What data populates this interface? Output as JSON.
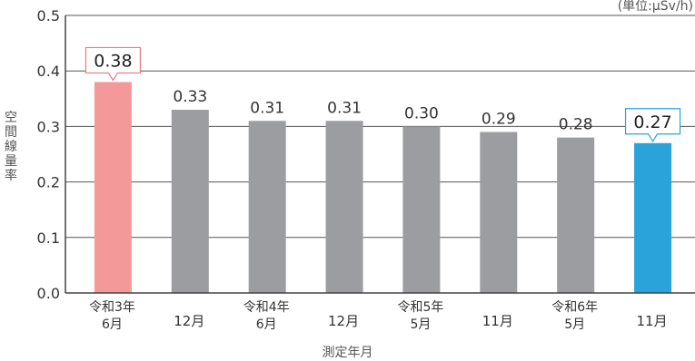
{
  "chart_data": {
    "type": "bar",
    "unit_label": "(単位:μSv/h)",
    "ylabel": "空間線量率",
    "xlabel": "測定年月",
    "ylim": [
      0,
      0.5
    ],
    "yticks": [
      "0.0",
      "0.1",
      "0.2",
      "0.3",
      "0.4",
      "0.5"
    ],
    "grid": true,
    "categories": [
      [
        "令和3年",
        "6月"
      ],
      [
        "",
        "12月"
      ],
      [
        "令和4年",
        "6月"
      ],
      [
        "",
        "12月"
      ],
      [
        "令和5年",
        "5月"
      ],
      [
        "",
        "11月"
      ],
      [
        "令和6年",
        "5月"
      ],
      [
        "",
        "11月"
      ]
    ],
    "values": [
      0.38,
      0.33,
      0.31,
      0.31,
      0.3,
      0.29,
      0.28,
      0.27
    ],
    "value_labels": [
      "0.38",
      "0.33",
      "0.31",
      "0.31",
      "0.30",
      "0.29",
      "0.28",
      "0.27"
    ],
    "colors": {
      "default": "#9b9da0",
      "first": "#f4999a",
      "first_callout_border": "#e87a82",
      "last": "#2aa3db",
      "last_callout_border": "#2aa3db",
      "axis": "#444444",
      "grid": "#555555"
    }
  }
}
